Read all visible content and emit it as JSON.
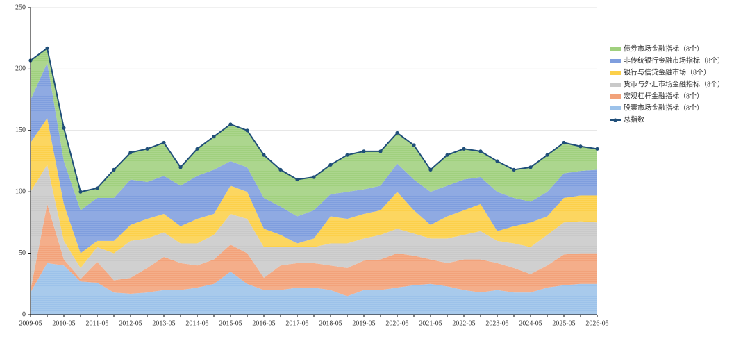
{
  "chart_data": {
    "type": "stacked-area-line",
    "categories": [
      "2009-05",
      null,
      "2010-05",
      null,
      "2011-05",
      null,
      "2012-05",
      null,
      "2013-05",
      null,
      "2014-05",
      null,
      "2015-05",
      null,
      "2016-05",
      null,
      "2017-05",
      null,
      "2018-05",
      null,
      "2019-05",
      null,
      "2020-05",
      null,
      "2021-05",
      null,
      "2022-05",
      null,
      "2023-05",
      null,
      "2024-05",
      null,
      "2025-05",
      null,
      "2026-05"
    ],
    "ylim": [
      0,
      250
    ],
    "yticks": [
      0,
      50,
      100,
      150,
      200,
      250
    ],
    "grid": true,
    "series": [
      {
        "name": "股票市场金融指标（8个）",
        "color": "#9cc2ea",
        "values": [
          18,
          42,
          40,
          27,
          26,
          18,
          17,
          18,
          20,
          20,
          22,
          25,
          35,
          25,
          20,
          20,
          22,
          22,
          20,
          15,
          20,
          20,
          22,
          24,
          25,
          23,
          20,
          18,
          20,
          18,
          18,
          22,
          24,
          25,
          25
        ]
      },
      {
        "name": "宏观杠杆金融指标（8个）",
        "color": "#f2a27a",
        "values": [
          2,
          48,
          5,
          2,
          17,
          10,
          13,
          20,
          27,
          22,
          18,
          20,
          22,
          25,
          10,
          20,
          20,
          20,
          20,
          23,
          24,
          25,
          28,
          24,
          20,
          19,
          25,
          27,
          22,
          20,
          15,
          18,
          25,
          25,
          25
        ]
      },
      {
        "name": "货币与外汇市场金融指标（8个）",
        "color": "#c9c9c9",
        "values": [
          80,
          32,
          15,
          9,
          12,
          22,
          30,
          24,
          20,
          16,
          18,
          20,
          25,
          28,
          25,
          15,
          13,
          13,
          18,
          20,
          18,
          20,
          20,
          18,
          17,
          20,
          20,
          23,
          18,
          20,
          22,
          25,
          26,
          26,
          25
        ]
      },
      {
        "name": "银行与信贷金融市场（8个）",
        "color": "#fcd04a",
        "values": [
          40,
          38,
          30,
          12,
          5,
          10,
          13,
          16,
          15,
          14,
          20,
          17,
          23,
          22,
          15,
          10,
          3,
          7,
          22,
          20,
          20,
          20,
          30,
          19,
          11,
          18,
          20,
          22,
          8,
          14,
          20,
          15,
          20,
          21,
          22
        ]
      },
      {
        "name": "非传统银行金融市场指标（8个）",
        "color": "#7f9ede",
        "values": [
          35,
          45,
          35,
          35,
          35,
          35,
          37,
          30,
          31,
          33,
          35,
          36,
          20,
          20,
          25,
          23,
          22,
          23,
          18,
          22,
          20,
          20,
          23,
          25,
          27,
          25,
          25,
          22,
          32,
          23,
          17,
          20,
          20,
          20,
          21
        ]
      },
      {
        "name": "债券市场金融指标（8个）",
        "color": "#a0d07e",
        "values": [
          32,
          12,
          27,
          15,
          8,
          23,
          22,
          27,
          27,
          15,
          22,
          27,
          30,
          30,
          35,
          30,
          30,
          27,
          24,
          30,
          31,
          28,
          25,
          28,
          18,
          25,
          25,
          21,
          25,
          23,
          28,
          30,
          25,
          20,
          17
        ]
      },
      {
        "name": "总指数",
        "color": "#1f4e79",
        "kind": "line",
        "values": [
          207,
          217,
          152,
          100,
          103,
          118,
          132,
          135,
          140,
          120,
          135,
          145,
          155,
          150,
          130,
          118,
          110,
          112,
          122,
          130,
          133,
          133,
          148,
          138,
          118,
          130,
          135,
          133,
          125,
          118,
          120,
          130,
          140,
          137,
          135
        ]
      }
    ]
  }
}
